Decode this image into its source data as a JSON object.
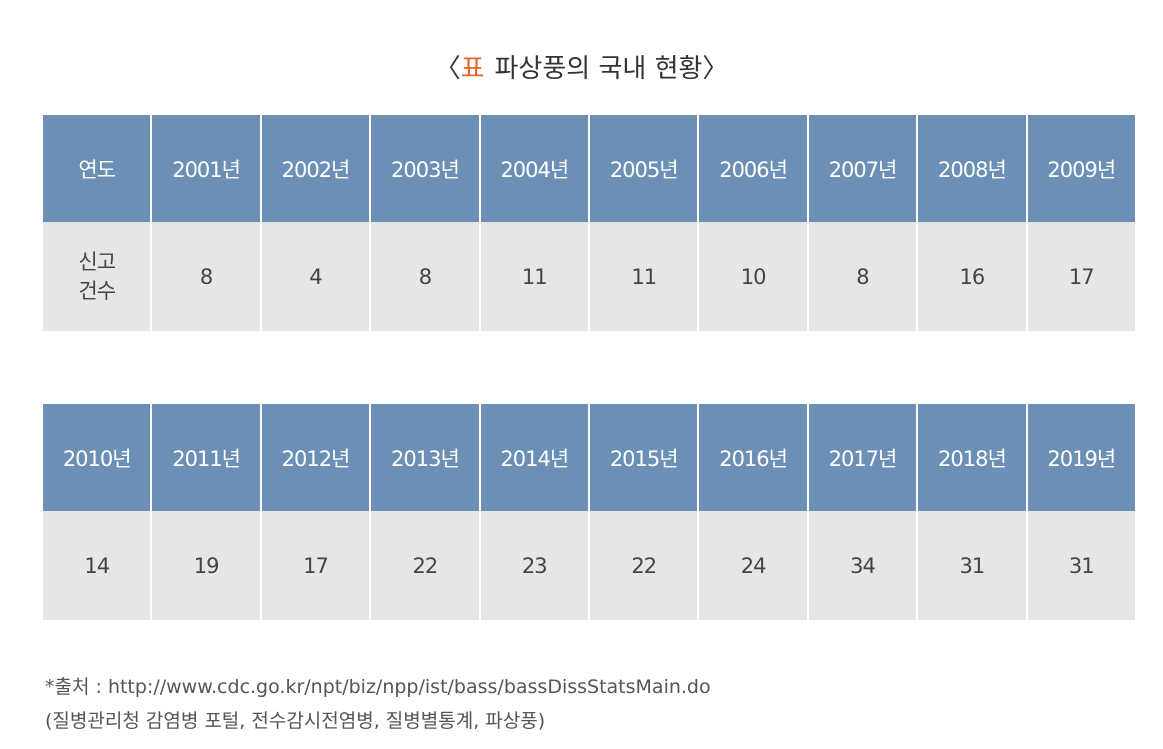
{
  "title": {
    "open": "〈",
    "label": "표",
    "text": "파상풍의 국내 현황〉"
  },
  "tables": [
    {
      "header": [
        "연도",
        "2001년",
        "2002년",
        "2003년",
        "2004년",
        "2005년",
        "2006년",
        "2007년",
        "2008년",
        "2009년"
      ],
      "row": [
        "신고 건수",
        8,
        4,
        8,
        11,
        11,
        10,
        8,
        16,
        17
      ]
    },
    {
      "header": [
        "2010년",
        "2011년",
        "2012년",
        "2013년",
        "2014년",
        "2015년",
        "2016년",
        "2017년",
        "2018년",
        "2019년"
      ],
      "row": [
        14,
        19,
        17,
        22,
        23,
        22,
        24,
        34,
        31,
        31
      ]
    }
  ],
  "source": {
    "line1": "*출처 : http://www.cdc.go.kr/npt/biz/npp/ist/bass/bassDissStatsMain.do",
    "line2": "(질병관리청 감염병 포털, 전수감시전염병, 질병별통계, 파상풍)"
  }
}
